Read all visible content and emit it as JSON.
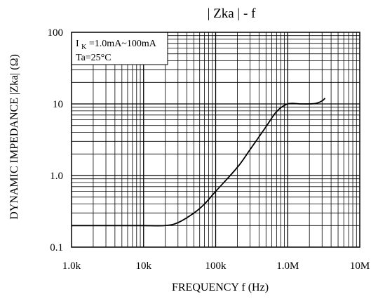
{
  "chart_data": {
    "type": "line",
    "title": "| Zka |  -  f",
    "xlabel": "FREQUENCY  f  (Hz)",
    "ylabel": "DYNAMIC IMPEDANCE  |Zka| (Ω)",
    "x_scale": "log",
    "y_scale": "log",
    "xlim": [
      1000,
      10000000
    ],
    "ylim": [
      0.1,
      100
    ],
    "x_ticks": [
      1000,
      10000,
      100000,
      1000000,
      10000000
    ],
    "x_tick_labels": [
      "1.0k",
      "10k",
      "100k",
      "1.0M",
      "10M"
    ],
    "y_ticks": [
      0.1,
      1,
      10,
      100
    ],
    "y_tick_labels": [
      "0.1",
      "1.0",
      "10",
      "100"
    ],
    "grid": true,
    "annotation": {
      "line1_prefix": "I",
      "line1_sub": "K",
      "line1_rest": "=1.0mA~100mA",
      "line2": "Ta=25°C"
    },
    "series": [
      {
        "x": [
          1000,
          5000,
          10000,
          20000,
          30000,
          50000,
          70000,
          100000,
          200000,
          300000,
          500000,
          700000,
          1000000,
          1500000,
          2000000,
          2500000,
          3000000,
          3300000
        ],
        "values": [
          0.2,
          0.2,
          0.2,
          0.2,
          0.22,
          0.3,
          0.4,
          0.6,
          1.3,
          2.3,
          4.8,
          7.8,
          10,
          10,
          10,
          10.2,
          11,
          12
        ]
      }
    ]
  }
}
